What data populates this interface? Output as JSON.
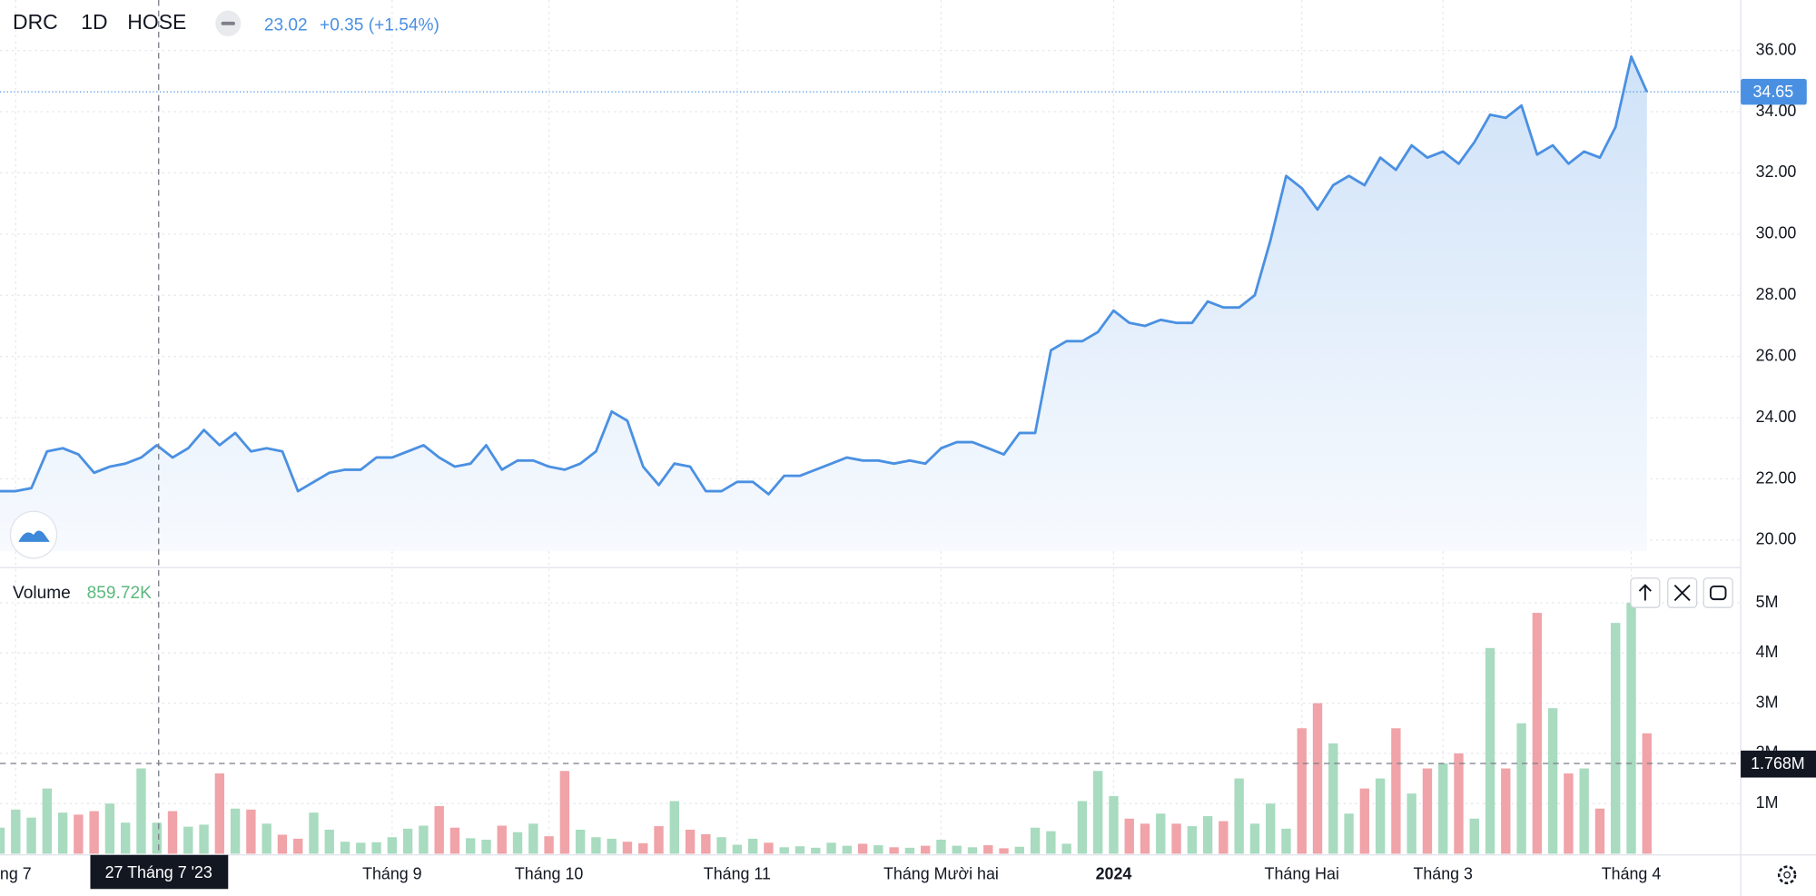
{
  "header": {
    "symbol": "DRC",
    "interval": "1D",
    "exchange": "HOSE",
    "quote": "23.02",
    "change": "+0.35 (+1.54%)"
  },
  "volume_header": {
    "label": "Volume",
    "value": "859.72K"
  },
  "crosshair": {
    "date_label": "27 Tháng 7 '23",
    "volume_label": "1.768M"
  },
  "chart_data": {
    "type": "line",
    "categories": [
      null,
      "ng 7",
      null,
      null,
      null,
      null,
      null,
      null,
      null,
      null,
      null,
      null,
      null,
      null,
      null,
      null,
      null,
      null,
      null,
      null,
      null,
      null,
      null,
      null,
      null,
      "Tháng 9",
      null,
      null,
      null,
      null,
      null,
      null,
      null,
      null,
      null,
      "Tháng 10",
      null,
      null,
      null,
      null,
      null,
      null,
      null,
      null,
      null,
      null,
      null,
      "Tháng 11",
      null,
      null,
      null,
      null,
      null,
      null,
      null,
      null,
      null,
      null,
      null,
      null,
      "Tháng Mười hai",
      null,
      null,
      null,
      null,
      null,
      null,
      null,
      null,
      null,
      null,
      "2024",
      null,
      null,
      null,
      null,
      null,
      null,
      null,
      null,
      null,
      null,
      null,
      "Tháng Hai",
      null,
      null,
      null,
      null,
      null,
      null,
      null,
      null,
      "Tháng 3",
      null,
      null,
      null,
      null,
      null,
      null,
      null,
      null,
      null,
      null,
      null,
      "Tháng 4",
      null
    ],
    "series": [
      {
        "name": "DRC",
        "axis": "y",
        "color": "#4a90e2",
        "values": [
          21.6,
          21.6,
          21.7,
          22.9,
          23.0,
          22.8,
          22.2,
          22.4,
          22.5,
          22.7,
          23.1,
          22.7,
          23.0,
          23.6,
          23.1,
          23.5,
          22.9,
          23.0,
          22.9,
          21.6,
          21.9,
          22.2,
          22.3,
          22.3,
          22.7,
          22.7,
          22.9,
          23.1,
          22.7,
          22.4,
          22.5,
          23.1,
          22.3,
          22.6,
          22.6,
          22.4,
          22.3,
          22.5,
          22.9,
          24.2,
          23.9,
          22.4,
          21.8,
          22.5,
          22.4,
          21.6,
          21.6,
          21.9,
          21.9,
          21.5,
          22.1,
          22.1,
          22.3,
          22.5,
          22.7,
          22.6,
          22.6,
          22.5,
          22.6,
          22.5,
          23.0,
          23.2,
          23.2,
          23.0,
          22.8,
          23.5,
          23.5,
          26.2,
          26.5,
          26.5,
          26.8,
          27.5,
          27.1,
          27.0,
          27.2,
          27.1,
          27.1,
          27.8,
          27.6,
          27.6,
          28.0,
          29.8,
          31.9,
          31.5,
          30.8,
          31.6,
          31.9,
          31.6,
          32.5,
          32.1,
          32.9,
          32.5,
          32.7,
          32.3,
          33.0,
          33.9,
          33.8,
          34.2,
          32.6,
          32.9,
          32.3,
          32.7,
          32.5,
          33.5,
          35.8,
          34.65
        ]
      },
      {
        "name": "Volume",
        "axis": "y2",
        "up_color": "#a8dbbf",
        "down_color": "#f0a3a8",
        "values": [
          520000,
          880000,
          720000,
          1300000,
          820000,
          780000,
          850000,
          1000000,
          620000,
          1700000,
          620000,
          850000,
          540000,
          580000,
          1600000,
          900000,
          880000,
          600000,
          380000,
          300000,
          820000,
          480000,
          240000,
          220000,
          230000,
          330000,
          500000,
          560000,
          950000,
          520000,
          310000,
          280000,
          560000,
          430000,
          600000,
          350000,
          1650000,
          480000,
          330000,
          300000,
          240000,
          210000,
          550000,
          1050000,
          480000,
          390000,
          330000,
          180000,
          300000,
          220000,
          130000,
          150000,
          120000,
          220000,
          160000,
          200000,
          170000,
          130000,
          120000,
          160000,
          280000,
          160000,
          130000,
          170000,
          110000,
          140000,
          520000,
          450000,
          200000,
          1050000,
          1650000,
          1150000,
          700000,
          600000,
          800000,
          600000,
          550000,
          750000,
          650000,
          1500000,
          600000,
          1000000,
          500000,
          2500000,
          3000000,
          2200000,
          800000,
          1300000,
          1500000,
          2500000,
          1200000,
          1700000,
          1800000,
          2000000,
          700000,
          4100000,
          1700000,
          2600000,
          4800000,
          2900000,
          1600000,
          1700000,
          900000,
          4600000,
          5000000,
          2400000
        ]
      }
    ],
    "ylim": [
      19.1,
      37.65
    ],
    "yticks": [
      {
        "value": 20,
        "label": "20.00"
      },
      {
        "value": 22,
        "label": "22.00"
      },
      {
        "value": 24,
        "label": "24.00"
      },
      {
        "value": 26,
        "label": "26.00"
      },
      {
        "value": 28,
        "label": "28.00"
      },
      {
        "value": 30,
        "label": "30.00"
      },
      {
        "value": 32,
        "label": "32.00"
      },
      {
        "value": 34,
        "label": "34.00"
      },
      {
        "value": 36,
        "label": "36.00"
      }
    ],
    "y2lim": [
      0,
      5500000
    ],
    "y2ticks": [
      {
        "value": 1000000,
        "label": "1M"
      },
      {
        "value": 2000000,
        "label": "2M"
      },
      {
        "value": 3000000,
        "label": "3M"
      },
      {
        "value": 4000000,
        "label": "4M"
      },
      {
        "value": 5000000,
        "label": "5M"
      }
    ],
    "grid": true
  }
}
